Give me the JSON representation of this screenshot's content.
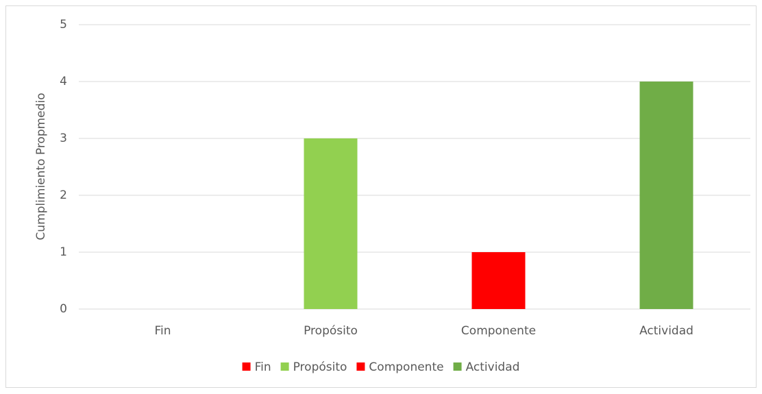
{
  "chart_data": {
    "type": "bar",
    "y_axis_label": "Cumplimiento Propmedio",
    "categories": [
      "Fin",
      "Propósito",
      "Componente",
      "Actividad"
    ],
    "values": [
      0,
      3,
      1,
      4
    ],
    "colors": [
      "#ff0000",
      "#92d050",
      "#ff0000",
      "#70ad47"
    ],
    "ylim": [
      0,
      5
    ],
    "yticks": [
      0,
      1,
      2,
      3,
      4,
      5
    ],
    "grid": true,
    "legend": "bottom"
  }
}
